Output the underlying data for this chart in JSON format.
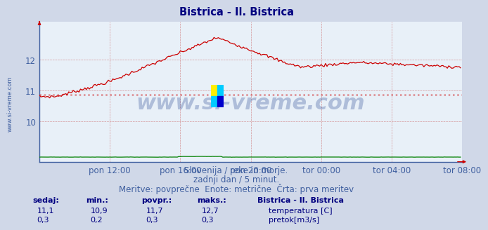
{
  "title": "Bistrica - Il. Bistrica",
  "title_color": "#000080",
  "bg_color": "#d0d8e8",
  "plot_bg_color": "#e8f0f8",
  "grid_color": "#d08080",
  "grid_color_minor": "#e0b0b0",
  "xlabel_color": "#4060a0",
  "ytick_color": "#4060a0",
  "xtick_labels": [
    "pon 12:00",
    "pon 16:00",
    "pon 20:00",
    "tor 00:00",
    "tor 04:00",
    "tor 08:00"
  ],
  "yticks": [
    10,
    11,
    12
  ],
  "ylim": [
    8.7,
    13.2
  ],
  "xlim": [
    0,
    288
  ],
  "temp_color": "#cc0000",
  "temp_avg": 10.85,
  "flow_color": "#008000",
  "watermark_text": "www.si-vreme.com",
  "watermark_color": "#1a3a8a",
  "watermark_alpha": 0.28,
  "watermark_fontsize": 22,
  "footer_line1": "Slovenija / reke in morje.",
  "footer_line2": "zadnji dan / 5 minut.",
  "footer_line3": "Meritve: povprečne  Enote: metrične  Črta: prva meritev",
  "footer_color": "#4060a0",
  "footer_fontsize": 8.5,
  "stat_label_color": "#000080",
  "stat_labels": [
    "sedaj:",
    "min.:",
    "povpr.:",
    "maks.:"
  ],
  "stat_values_temp": [
    "11,1",
    "10,9",
    "11,7",
    "12,7"
  ],
  "stat_values_flow": [
    "0,3",
    "0,2",
    "0,3",
    "0,3"
  ],
  "legend_title": "Bistrica - Il. Bistrica",
  "legend_entries": [
    "temperatura [C]",
    "pretok[m3/s]"
  ],
  "legend_colors": [
    "#cc0000",
    "#008800"
  ],
  "sidebar_text": "www.si-vreme.com",
  "sidebar_color": "#4060a0",
  "left_spine_color": "#4060a0",
  "bottom_spine_color": "#4060a0"
}
